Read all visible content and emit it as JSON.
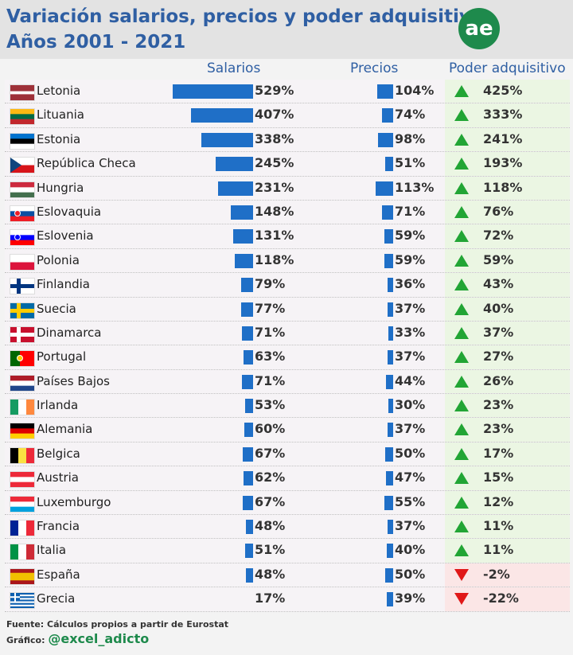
{
  "header": {
    "title_line1": "Variación salarios, precios y poder adquisitivo",
    "title_line2": "Años 2001 - 2021",
    "logo_text": "ae",
    "brand_color": "#1e8a4c",
    "title_color": "#2f5fa3"
  },
  "columns": {
    "salaries": "Salarios",
    "prices": "Precios",
    "power": "Poder adquisitivo"
  },
  "chart_data": {
    "type": "table",
    "title": "Variación salarios, precios y poder adquisitivo Años 2001 - 2021",
    "series": [
      {
        "name": "Salarios",
        "unit": "%",
        "max": 529
      },
      {
        "name": "Precios",
        "unit": "%",
        "max": 113
      },
      {
        "name": "Poder adquisitivo",
        "unit": "%"
      }
    ],
    "rows": [
      {
        "country": "Letonia",
        "flag": "lv",
        "salarios": 529,
        "salarios_label": "529%",
        "precios": 104,
        "precios_label": "104%",
        "poder": 425,
        "poder_label": "425%"
      },
      {
        "country": "Lituania",
        "flag": "lt",
        "salarios": 407,
        "salarios_label": "407%",
        "precios": 74,
        "precios_label": "74%",
        "poder": 333,
        "poder_label": "333%"
      },
      {
        "country": "Estonia",
        "flag": "ee",
        "salarios": 338,
        "salarios_label": "338%",
        "precios": 98,
        "precios_label": "98%",
        "poder": 241,
        "poder_label": "241%"
      },
      {
        "country": "República Checa",
        "flag": "cz",
        "salarios": 245,
        "salarios_label": "245%",
        "precios": 51,
        "precios_label": "51%",
        "poder": 193,
        "poder_label": "193%"
      },
      {
        "country": "Hungria",
        "flag": "hu",
        "salarios": 231,
        "salarios_label": "231%",
        "precios": 113,
        "precios_label": "113%",
        "poder": 118,
        "poder_label": "118%"
      },
      {
        "country": "Eslovaquia",
        "flag": "sk",
        "salarios": 148,
        "salarios_label": "148%",
        "precios": 71,
        "precios_label": "71%",
        "poder": 76,
        "poder_label": "76%"
      },
      {
        "country": "Eslovenia",
        "flag": "si",
        "salarios": 131,
        "salarios_label": "131%",
        "precios": 59,
        "precios_label": "59%",
        "poder": 72,
        "poder_label": "72%"
      },
      {
        "country": "Polonia",
        "flag": "pl",
        "salarios": 118,
        "salarios_label": "118%",
        "precios": 59,
        "precios_label": "59%",
        "poder": 59,
        "poder_label": "59%"
      },
      {
        "country": "Finlandia",
        "flag": "fi",
        "salarios": 79,
        "salarios_label": "79%",
        "precios": 36,
        "precios_label": "36%",
        "poder": 43,
        "poder_label": "43%"
      },
      {
        "country": "Suecia",
        "flag": "se",
        "salarios": 77,
        "salarios_label": "77%",
        "precios": 37,
        "precios_label": "37%",
        "poder": 40,
        "poder_label": "40%"
      },
      {
        "country": "Dinamarca",
        "flag": "dk",
        "salarios": 71,
        "salarios_label": "71%",
        "precios": 33,
        "precios_label": "33%",
        "poder": 37,
        "poder_label": "37%"
      },
      {
        "country": "Portugal",
        "flag": "pt",
        "salarios": 63,
        "salarios_label": "63%",
        "precios": 37,
        "precios_label": "37%",
        "poder": 27,
        "poder_label": "27%"
      },
      {
        "country": "Países Bajos",
        "flag": "nl",
        "salarios": 71,
        "salarios_label": "71%",
        "precios": 44,
        "precios_label": "44%",
        "poder": 26,
        "poder_label": "26%"
      },
      {
        "country": "Irlanda",
        "flag": "ie",
        "salarios": 53,
        "salarios_label": "53%",
        "precios": 30,
        "precios_label": "30%",
        "poder": 23,
        "poder_label": "23%"
      },
      {
        "country": "Alemania",
        "flag": "de",
        "salarios": 60,
        "salarios_label": "60%",
        "precios": 37,
        "precios_label": "37%",
        "poder": 23,
        "poder_label": "23%"
      },
      {
        "country": "Belgica",
        "flag": "be",
        "salarios": 67,
        "salarios_label": "67%",
        "precios": 50,
        "precios_label": "50%",
        "poder": 17,
        "poder_label": "17%"
      },
      {
        "country": "Austria",
        "flag": "at",
        "salarios": 62,
        "salarios_label": "62%",
        "precios": 47,
        "precios_label": "47%",
        "poder": 15,
        "poder_label": "15%"
      },
      {
        "country": "Luxemburgo",
        "flag": "lu",
        "salarios": 67,
        "salarios_label": "67%",
        "precios": 55,
        "precios_label": "55%",
        "poder": 12,
        "poder_label": "12%"
      },
      {
        "country": "Francia",
        "flag": "fr",
        "salarios": 48,
        "salarios_label": "48%",
        "precios": 37,
        "precios_label": "37%",
        "poder": 11,
        "poder_label": "11%"
      },
      {
        "country": "Italia",
        "flag": "it",
        "salarios": 51,
        "salarios_label": "51%",
        "precios": 40,
        "precios_label": "40%",
        "poder": 11,
        "poder_label": "11%"
      },
      {
        "country": "España",
        "flag": "es",
        "salarios": 48,
        "salarios_label": "48%",
        "precios": 50,
        "precios_label": "50%",
        "poder": -2,
        "poder_label": "-2%"
      },
      {
        "country": "Grecia",
        "flag": "gr",
        "salarios": 17,
        "salarios_label": "17%",
        "precios": 39,
        "precios_label": "39%",
        "poder": -22,
        "poder_label": "-22%"
      }
    ]
  },
  "footer": {
    "source": "Fuente: Cálculos propios a partir de Eurostat",
    "graph_label": "Gráfico:",
    "handle": "@excel_adicto"
  }
}
